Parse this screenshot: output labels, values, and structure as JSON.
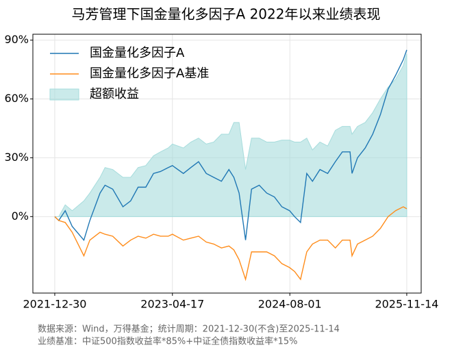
{
  "chart_data": {
    "type": "line",
    "title": "马芳管理下国金量化多因子A 2022年以来业绩表现",
    "notes": [
      "数据来源：Wind，万得基金；统计周期：2021-12-30(不含)至2025-11-14",
      "业绩基准：中证500指数收益率*85%+中证全债指数收益率*15%"
    ],
    "x": [
      "2021-12-30",
      "2022-01-15",
      "2022-02-10",
      "2022-03-10",
      "2022-04-26",
      "2022-05-20",
      "2022-06-30",
      "2022-07-20",
      "2022-08-20",
      "2022-09-30",
      "2022-10-31",
      "2022-11-30",
      "2022-12-31",
      "2023-01-31",
      "2023-02-28",
      "2023-03-31",
      "2023-04-17",
      "2023-05-31",
      "2023-06-30",
      "2023-07-31",
      "2023-08-31",
      "2023-09-30",
      "2023-10-31",
      "2023-11-30",
      "2023-12-20",
      "2024-01-10",
      "2024-02-05",
      "2024-02-29",
      "2024-03-31",
      "2024-04-30",
      "2024-05-31",
      "2024-06-30",
      "2024-07-31",
      "2024-08-20",
      "2024-09-13",
      "2024-10-08",
      "2024-10-31",
      "2024-11-30",
      "2024-12-31",
      "2025-01-31",
      "2025-02-28",
      "2025-03-31",
      "2025-04-08",
      "2025-04-30",
      "2025-05-31",
      "2025-06-30",
      "2025-07-31",
      "2025-08-31",
      "2025-09-30",
      "2025-10-31",
      "2025-11-14"
    ],
    "series": [
      {
        "name": "国金量化多因子A",
        "color": "#1f77b4",
        "kind": "line",
        "values": [
          0,
          -2,
          3,
          -5,
          -12,
          -2,
          12,
          16,
          14,
          5,
          8,
          15,
          15,
          22,
          23,
          25,
          26,
          22,
          25,
          28,
          22,
          20,
          18,
          24,
          20,
          12,
          -12,
          14,
          16,
          12,
          10,
          5,
          3,
          0,
          -3,
          22,
          18,
          24,
          22,
          28,
          33,
          33,
          22,
          30,
          35,
          42,
          52,
          65,
          72,
          80,
          85
        ]
      },
      {
        "name": "国金量化多因子A基准",
        "color": "#ff8c1a",
        "kind": "line",
        "values": [
          0,
          -2,
          -3,
          -8,
          -20,
          -12,
          -8,
          -9,
          -10,
          -15,
          -12,
          -10,
          -11,
          -9,
          -10,
          -10,
          -9,
          -12,
          -11,
          -10,
          -13,
          -14,
          -16,
          -15,
          -17,
          -22,
          -32,
          -18,
          -18,
          -18,
          -20,
          -24,
          -26,
          -28,
          -32,
          -18,
          -14,
          -12,
          -12,
          -16,
          -12,
          -12,
          -20,
          -14,
          -12,
          -10,
          -6,
          0,
          3,
          5,
          4
        ]
      },
      {
        "name": "超额收益",
        "color": "#a6dcdc",
        "kind": "area",
        "values": [
          0,
          0,
          6,
          3,
          8,
          12,
          20,
          25,
          24,
          20,
          20,
          25,
          26,
          31,
          33,
          35,
          37,
          35,
          38,
          40,
          37,
          38,
          42,
          42,
          48,
          48,
          24,
          40,
          40,
          38,
          38,
          39,
          39,
          38,
          38,
          40,
          34,
          38,
          36,
          44,
          46,
          46,
          42,
          46,
          48,
          53,
          60,
          66,
          70,
          77,
          83
        ]
      }
    ],
    "xlim": [
      "2021-10-03",
      "2026-01-11"
    ],
    "xticks": [
      "2021-12-30",
      "2023-04-17",
      "2024-08-01",
      "2025-11-14"
    ],
    "ylim": [
      -39,
      93
    ],
    "yticks": [
      {
        "value": 0,
        "label": "0%"
      },
      {
        "value": 30,
        "label": "30%"
      },
      {
        "value": 60,
        "label": "60%"
      },
      {
        "value": 90,
        "label": "90%"
      }
    ],
    "grid": true,
    "legend": "upper left"
  }
}
